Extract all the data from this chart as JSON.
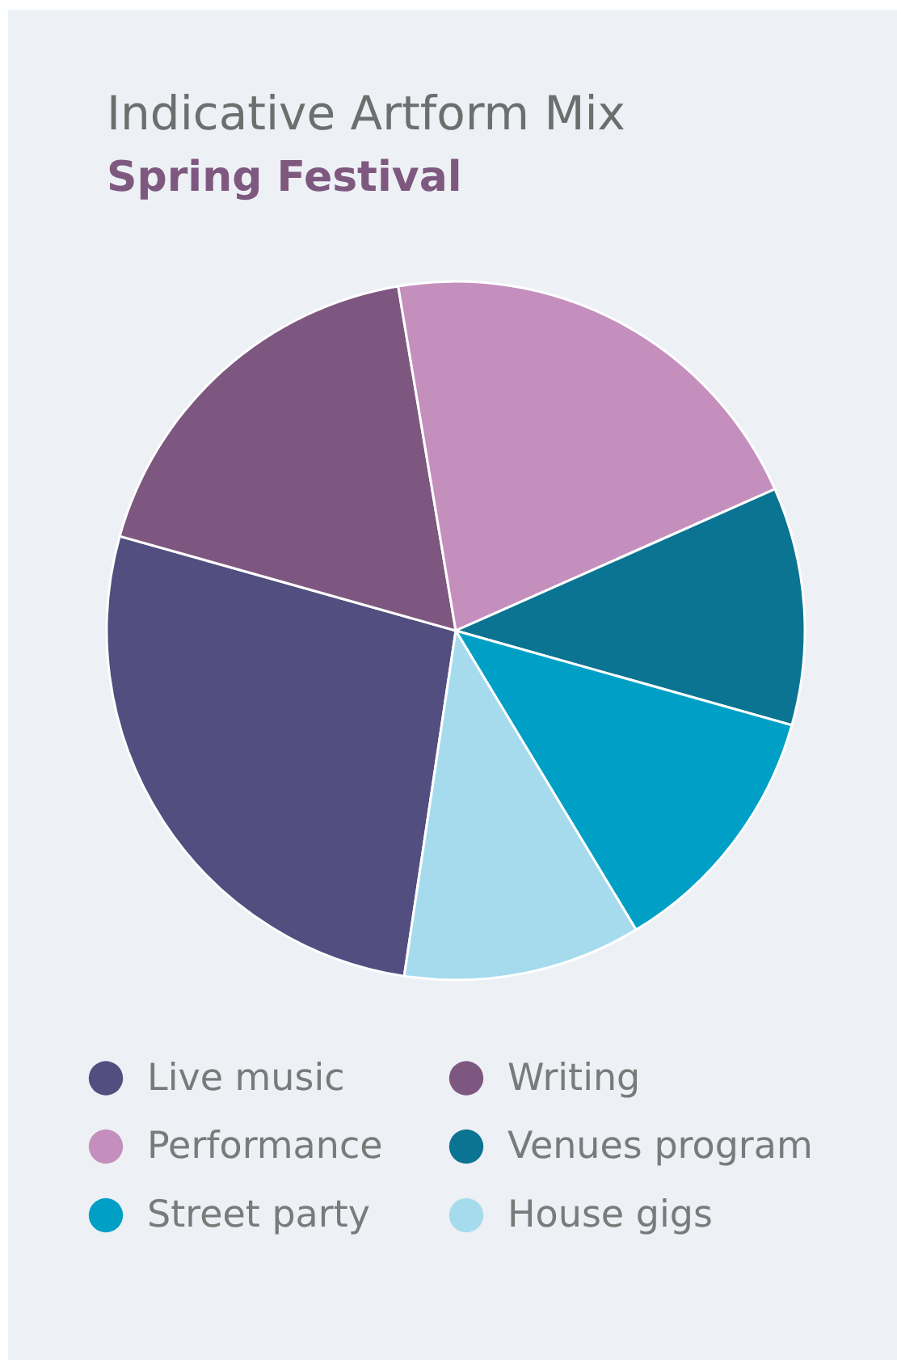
{
  "chart_data": {
    "type": "pie",
    "title": "Indicative Artform Mix",
    "subtitle": "Spring Festival",
    "categories": [
      "Live music",
      "Writing",
      "Performance",
      "Venues program",
      "Street party",
      "House gigs"
    ],
    "values": [
      27,
      18,
      21,
      11,
      12,
      11
    ],
    "colors": [
      "#524e80",
      "#7e5780",
      "#c48fbd",
      "#0a7492",
      "#00a0c6",
      "#a6dbee"
    ],
    "legend": "bottom"
  }
}
